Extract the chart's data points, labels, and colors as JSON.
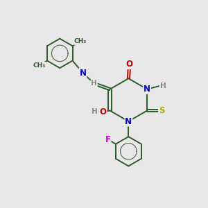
{
  "bg_color": "#e8e8e8",
  "bond_color": "#2d5a2d",
  "atom_colors": {
    "N": "#0000cc",
    "O": "#cc0000",
    "S": "#aaaa00",
    "F": "#cc00cc",
    "C": "#2d5a2d",
    "H": "#888888"
  },
  "bond_width": 1.4,
  "font_size": 8.5,
  "figsize": [
    3.0,
    3.0
  ],
  "dpi": 100,
  "xlim": [
    0,
    10
  ],
  "ylim": [
    0,
    10
  ]
}
